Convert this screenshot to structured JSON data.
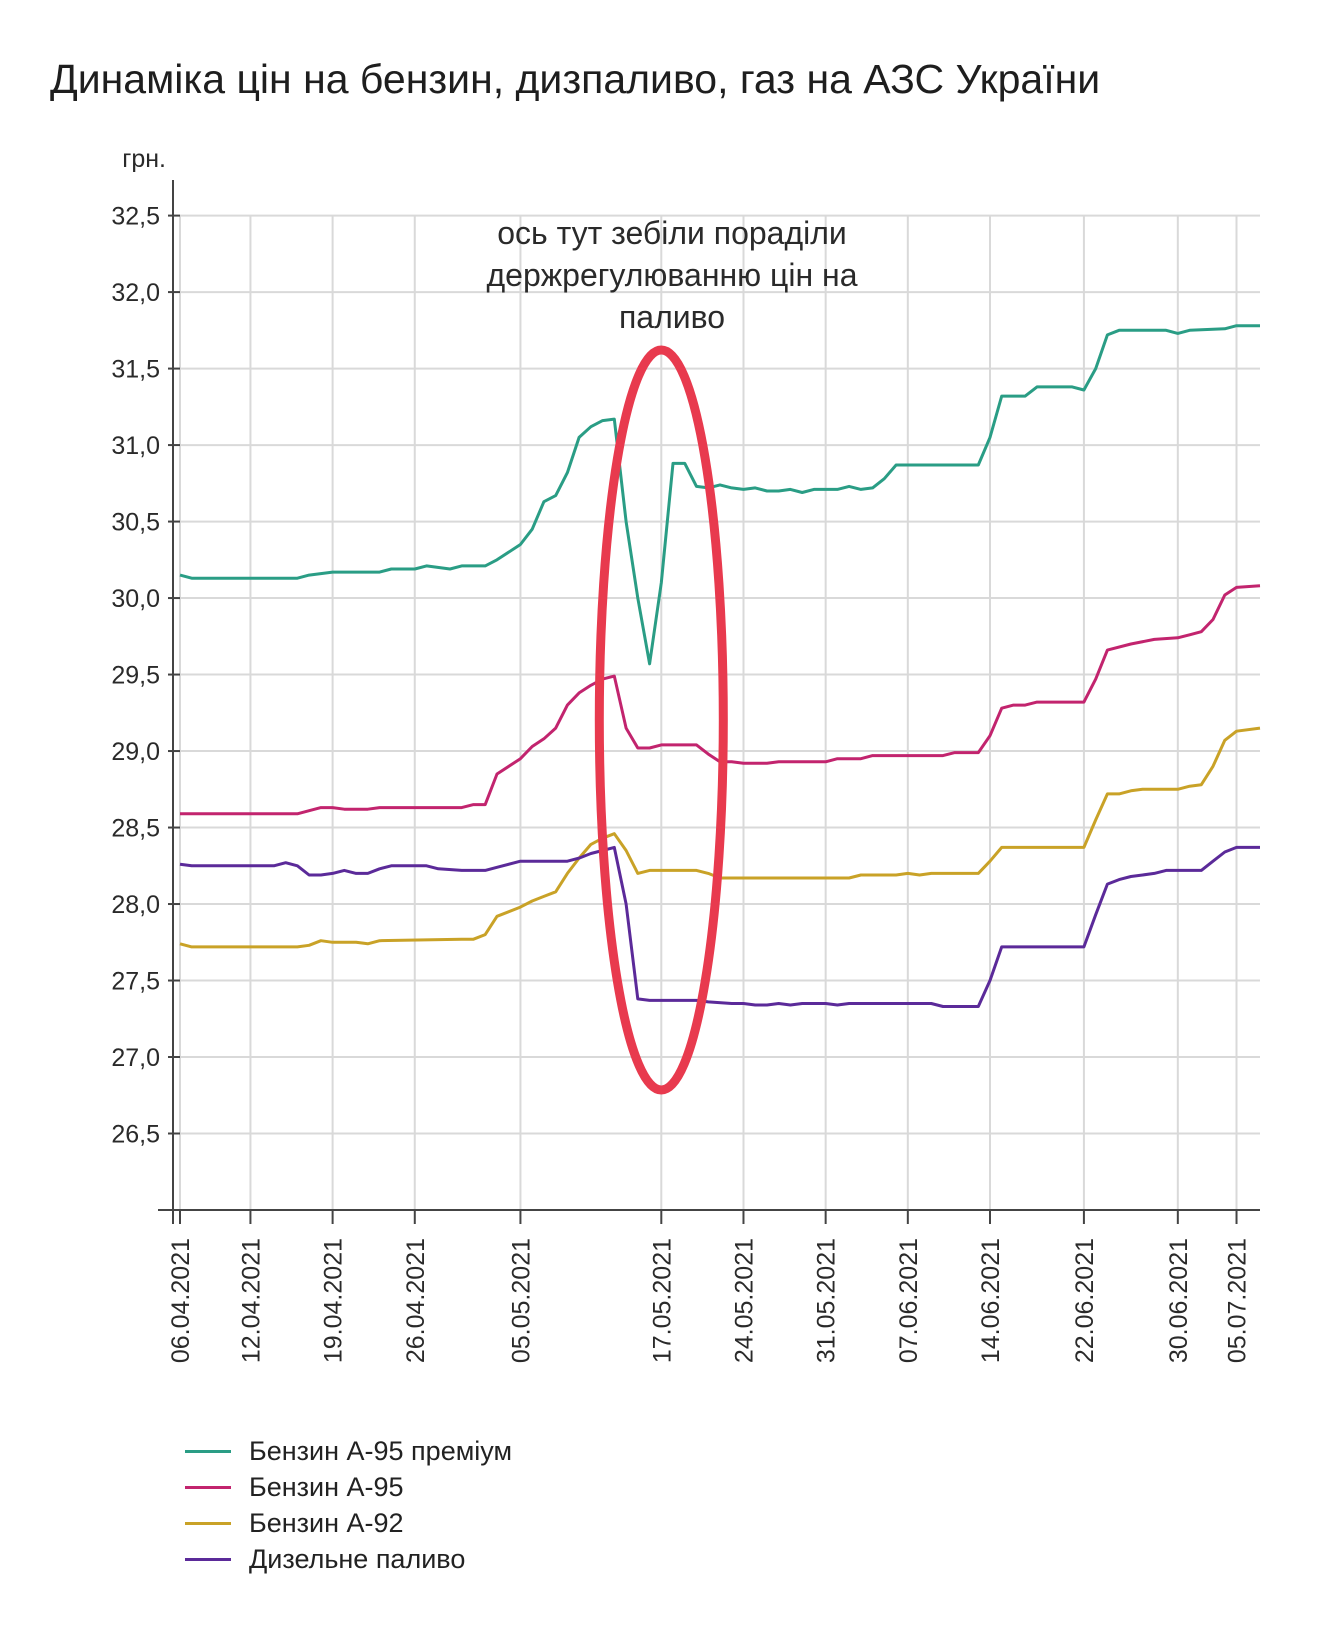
{
  "chart_data": {
    "type": "line",
    "title": "Динаміка цін на бензин, дизпаливо, газ на АЗС України",
    "ylabel": "грн.",
    "xlabel": "",
    "ylim": [
      26.0,
      32.7
    ],
    "yticks": [
      "26,5",
      "27,0",
      "27,5",
      "28,0",
      "28,5",
      "29,0",
      "29,5",
      "30,0",
      "30,5",
      "31,0",
      "31,5",
      "32,0",
      "32,5"
    ],
    "ytick_values": [
      26.5,
      27.0,
      27.5,
      28.0,
      28.5,
      29.0,
      29.5,
      30.0,
      30.5,
      31.0,
      31.5,
      32.0,
      32.5
    ],
    "xlim": [
      "2021-04-06",
      "2021-07-07"
    ],
    "xticks": [
      {
        "date": "2021-04-06",
        "label": "06.04.2021"
      },
      {
        "date": "2021-04-12",
        "label": "12.04.2021"
      },
      {
        "date": "2021-04-19",
        "label": "19.04.2021"
      },
      {
        "date": "2021-04-26",
        "label": "26.04.2021"
      },
      {
        "date": "2021-05-05",
        "label": "05.05.2021"
      },
      {
        "date": "2021-05-17",
        "label": "17.05.2021"
      },
      {
        "date": "2021-05-24",
        "label": "24.05.2021"
      },
      {
        "date": "2021-05-31",
        "label": "31.05.2021"
      },
      {
        "date": "2021-06-07",
        "label": "07.06.2021"
      },
      {
        "date": "2021-06-14",
        "label": "14.06.2021"
      },
      {
        "date": "2021-06-22",
        "label": "22.06.2021"
      },
      {
        "date": "2021-06-30",
        "label": "30.06.2021"
      },
      {
        "date": "2021-07-05",
        "label": "05.07.2021"
      }
    ],
    "grid": true,
    "legend_position": "bottom-left",
    "series": [
      {
        "name": "Бензин А-95 преміум",
        "color": "#2a9d85",
        "points": [
          [
            "2021-04-06",
            30.15
          ],
          [
            "2021-04-07",
            30.13
          ],
          [
            "2021-04-16",
            30.13
          ],
          [
            "2021-04-17",
            30.15
          ],
          [
            "2021-04-19",
            30.17
          ],
          [
            "2021-04-23",
            30.17
          ],
          [
            "2021-04-24",
            30.19
          ],
          [
            "2021-04-26",
            30.19
          ],
          [
            "2021-04-27",
            30.21
          ],
          [
            "2021-04-29",
            30.19
          ],
          [
            "2021-04-30",
            30.21
          ],
          [
            "2021-05-02",
            30.21
          ],
          [
            "2021-05-03",
            30.25
          ],
          [
            "2021-05-05",
            30.35
          ],
          [
            "2021-05-06",
            30.45
          ],
          [
            "2021-05-07",
            30.63
          ],
          [
            "2021-05-08",
            30.67
          ],
          [
            "2021-05-09",
            30.82
          ],
          [
            "2021-05-10",
            31.05
          ],
          [
            "2021-05-11",
            31.12
          ],
          [
            "2021-05-12",
            31.16
          ],
          [
            "2021-05-13",
            31.17
          ],
          [
            "2021-05-14",
            30.5
          ],
          [
            "2021-05-15",
            30.0
          ],
          [
            "2021-05-16",
            29.57
          ],
          [
            "2021-05-17",
            30.1
          ],
          [
            "2021-05-18",
            30.88
          ],
          [
            "2021-05-19",
            30.88
          ],
          [
            "2021-05-20",
            30.73
          ],
          [
            "2021-05-21",
            30.72
          ],
          [
            "2021-05-22",
            30.74
          ],
          [
            "2021-05-23",
            30.72
          ],
          [
            "2021-05-24",
            30.71
          ],
          [
            "2021-05-25",
            30.72
          ],
          [
            "2021-05-26",
            30.7
          ],
          [
            "2021-05-27",
            30.7
          ],
          [
            "2021-05-28",
            30.71
          ],
          [
            "2021-05-29",
            30.69
          ],
          [
            "2021-05-30",
            30.71
          ],
          [
            "2021-06-01",
            30.71
          ],
          [
            "2021-06-02",
            30.73
          ],
          [
            "2021-06-03",
            30.71
          ],
          [
            "2021-06-04",
            30.72
          ],
          [
            "2021-06-05",
            30.78
          ],
          [
            "2021-06-06",
            30.87
          ],
          [
            "2021-06-13",
            30.87
          ],
          [
            "2021-06-14",
            31.05
          ],
          [
            "2021-06-15",
            31.32
          ],
          [
            "2021-06-17",
            31.32
          ],
          [
            "2021-06-18",
            31.38
          ],
          [
            "2021-06-21",
            31.38
          ],
          [
            "2021-06-22",
            31.36
          ],
          [
            "2021-06-23",
            31.5
          ],
          [
            "2021-06-24",
            31.72
          ],
          [
            "2021-06-25",
            31.75
          ],
          [
            "2021-06-29",
            31.75
          ],
          [
            "2021-06-30",
            31.73
          ],
          [
            "2021-07-01",
            31.75
          ],
          [
            "2021-07-04",
            31.76
          ],
          [
            "2021-07-05",
            31.78
          ],
          [
            "2021-07-07",
            31.78
          ]
        ]
      },
      {
        "name": "Бензин А-95",
        "color": "#c2246e",
        "points": [
          [
            "2021-04-06",
            28.59
          ],
          [
            "2021-04-16",
            28.59
          ],
          [
            "2021-04-17",
            28.61
          ],
          [
            "2021-04-18",
            28.63
          ],
          [
            "2021-04-19",
            28.63
          ],
          [
            "2021-04-20",
            28.62
          ],
          [
            "2021-04-22",
            28.62
          ],
          [
            "2021-04-23",
            28.63
          ],
          [
            "2021-04-30",
            28.63
          ],
          [
            "2021-05-01",
            28.65
          ],
          [
            "2021-05-02",
            28.65
          ],
          [
            "2021-05-03",
            28.85
          ],
          [
            "2021-05-05",
            28.95
          ],
          [
            "2021-05-06",
            29.03
          ],
          [
            "2021-05-07",
            29.08
          ],
          [
            "2021-05-08",
            29.15
          ],
          [
            "2021-05-09",
            29.3
          ],
          [
            "2021-05-10",
            29.38
          ],
          [
            "2021-05-11",
            29.43
          ],
          [
            "2021-05-12",
            29.47
          ],
          [
            "2021-05-13",
            29.49
          ],
          [
            "2021-05-14",
            29.15
          ],
          [
            "2021-05-15",
            29.02
          ],
          [
            "2021-05-16",
            29.02
          ],
          [
            "2021-05-17",
            29.04
          ],
          [
            "2021-05-20",
            29.04
          ],
          [
            "2021-05-21",
            28.98
          ],
          [
            "2021-05-22",
            28.93
          ],
          [
            "2021-05-23",
            28.93
          ],
          [
            "2021-05-24",
            28.92
          ],
          [
            "2021-05-26",
            28.92
          ],
          [
            "2021-05-27",
            28.93
          ],
          [
            "2021-05-31",
            28.93
          ],
          [
            "2021-06-01",
            28.95
          ],
          [
            "2021-06-03",
            28.95
          ],
          [
            "2021-06-04",
            28.97
          ],
          [
            "2021-06-10",
            28.97
          ],
          [
            "2021-06-11",
            28.99
          ],
          [
            "2021-06-13",
            28.99
          ],
          [
            "2021-06-14",
            29.1
          ],
          [
            "2021-06-15",
            29.28
          ],
          [
            "2021-06-16",
            29.3
          ],
          [
            "2021-06-17",
            29.3
          ],
          [
            "2021-06-18",
            29.32
          ],
          [
            "2021-06-22",
            29.32
          ],
          [
            "2021-06-23",
            29.47
          ],
          [
            "2021-06-24",
            29.66
          ],
          [
            "2021-06-26",
            29.7
          ],
          [
            "2021-06-28",
            29.73
          ],
          [
            "2021-06-30",
            29.74
          ],
          [
            "2021-07-01",
            29.76
          ],
          [
            "2021-07-02",
            29.78
          ],
          [
            "2021-07-03",
            29.86
          ],
          [
            "2021-07-04",
            30.02
          ],
          [
            "2021-07-05",
            30.07
          ],
          [
            "2021-07-07",
            30.08
          ]
        ]
      },
      {
        "name": "Бензин А-92",
        "color": "#c9a227",
        "points": [
          [
            "2021-04-06",
            27.74
          ],
          [
            "2021-04-07",
            27.72
          ],
          [
            "2021-04-16",
            27.72
          ],
          [
            "2021-04-17",
            27.73
          ],
          [
            "2021-04-18",
            27.76
          ],
          [
            "2021-04-19",
            27.75
          ],
          [
            "2021-04-21",
            27.75
          ],
          [
            "2021-04-22",
            27.74
          ],
          [
            "2021-04-23",
            27.76
          ],
          [
            "2021-04-30",
            27.77
          ],
          [
            "2021-05-01",
            27.77
          ],
          [
            "2021-05-02",
            27.8
          ],
          [
            "2021-05-03",
            27.92
          ],
          [
            "2021-05-05",
            27.98
          ],
          [
            "2021-05-06",
            28.02
          ],
          [
            "2021-05-07",
            28.05
          ],
          [
            "2021-05-08",
            28.08
          ],
          [
            "2021-05-09",
            28.2
          ],
          [
            "2021-05-10",
            28.3
          ],
          [
            "2021-05-11",
            28.39
          ],
          [
            "2021-05-12",
            28.43
          ],
          [
            "2021-05-13",
            28.46
          ],
          [
            "2021-05-14",
            28.35
          ],
          [
            "2021-05-15",
            28.2
          ],
          [
            "2021-05-16",
            28.22
          ],
          [
            "2021-05-20",
            28.22
          ],
          [
            "2021-05-21",
            28.2
          ],
          [
            "2021-05-22",
            28.17
          ],
          [
            "2021-06-02",
            28.17
          ],
          [
            "2021-06-03",
            28.19
          ],
          [
            "2021-06-06",
            28.19
          ],
          [
            "2021-06-07",
            28.2
          ],
          [
            "2021-06-08",
            28.19
          ],
          [
            "2021-06-09",
            28.2
          ],
          [
            "2021-06-13",
            28.2
          ],
          [
            "2021-06-14",
            28.28
          ],
          [
            "2021-06-15",
            28.37
          ],
          [
            "2021-06-22",
            28.37
          ],
          [
            "2021-06-23",
            28.55
          ],
          [
            "2021-06-24",
            28.72
          ],
          [
            "2021-06-25",
            28.72
          ],
          [
            "2021-06-26",
            28.74
          ],
          [
            "2021-06-27",
            28.75
          ],
          [
            "2021-06-30",
            28.75
          ],
          [
            "2021-07-01",
            28.77
          ],
          [
            "2021-07-02",
            28.78
          ],
          [
            "2021-07-03",
            28.9
          ],
          [
            "2021-07-04",
            29.07
          ],
          [
            "2021-07-05",
            29.13
          ],
          [
            "2021-07-07",
            29.15
          ]
        ]
      },
      {
        "name": "Дизельне паливо",
        "color": "#5b2a99",
        "points": [
          [
            "2021-04-06",
            28.26
          ],
          [
            "2021-04-07",
            28.25
          ],
          [
            "2021-04-14",
            28.25
          ],
          [
            "2021-04-15",
            28.27
          ],
          [
            "2021-04-16",
            28.25
          ],
          [
            "2021-04-17",
            28.19
          ],
          [
            "2021-04-18",
            28.19
          ],
          [
            "2021-04-19",
            28.2
          ],
          [
            "2021-04-20",
            28.22
          ],
          [
            "2021-04-21",
            28.2
          ],
          [
            "2021-04-22",
            28.2
          ],
          [
            "2021-04-23",
            28.23
          ],
          [
            "2021-04-24",
            28.25
          ],
          [
            "2021-04-27",
            28.25
          ],
          [
            "2021-04-28",
            28.23
          ],
          [
            "2021-04-30",
            28.22
          ],
          [
            "2021-05-02",
            28.22
          ],
          [
            "2021-05-03",
            28.24
          ],
          [
            "2021-05-05",
            28.28
          ],
          [
            "2021-05-06",
            28.28
          ],
          [
            "2021-05-08",
            28.28
          ],
          [
            "2021-05-09",
            28.28
          ],
          [
            "2021-05-10",
            28.3
          ],
          [
            "2021-05-11",
            28.33
          ],
          [
            "2021-05-12",
            28.35
          ],
          [
            "2021-05-13",
            28.37
          ],
          [
            "2021-05-14",
            28.0
          ],
          [
            "2021-05-15",
            27.38
          ],
          [
            "2021-05-16",
            27.37
          ],
          [
            "2021-05-20",
            27.37
          ],
          [
            "2021-05-21",
            27.36
          ],
          [
            "2021-05-23",
            27.35
          ],
          [
            "2021-05-24",
            27.35
          ],
          [
            "2021-05-25",
            27.34
          ],
          [
            "2021-05-26",
            27.34
          ],
          [
            "2021-05-27",
            27.35
          ],
          [
            "2021-05-28",
            27.34
          ],
          [
            "2021-05-29",
            27.35
          ],
          [
            "2021-05-31",
            27.35
          ],
          [
            "2021-06-01",
            27.34
          ],
          [
            "2021-06-02",
            27.35
          ],
          [
            "2021-06-09",
            27.35
          ],
          [
            "2021-06-10",
            27.33
          ],
          [
            "2021-06-13",
            27.33
          ],
          [
            "2021-06-14",
            27.5
          ],
          [
            "2021-06-15",
            27.72
          ],
          [
            "2021-06-21",
            27.72
          ],
          [
            "2021-06-22",
            27.72
          ],
          [
            "2021-06-23",
            27.93
          ],
          [
            "2021-06-24",
            28.13
          ],
          [
            "2021-06-25",
            28.16
          ],
          [
            "2021-06-26",
            28.18
          ],
          [
            "2021-06-27",
            28.19
          ],
          [
            "2021-06-28",
            28.2
          ],
          [
            "2021-06-29",
            28.22
          ],
          [
            "2021-07-02",
            28.22
          ],
          [
            "2021-07-03",
            28.28
          ],
          [
            "2021-07-04",
            28.34
          ],
          [
            "2021-07-05",
            28.37
          ],
          [
            "2021-07-07",
            28.37
          ]
        ]
      }
    ],
    "annotation": {
      "lines": [
        "ось тут зебіли пораділи",
        "держрегулюванню цін на",
        "паливо"
      ],
      "highlight_color": "#e83a4e"
    }
  }
}
